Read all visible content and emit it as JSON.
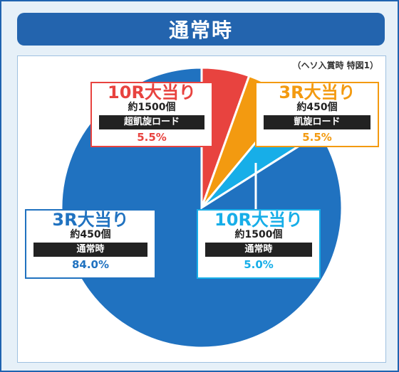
{
  "header": {
    "title": "通常時"
  },
  "note": "（ヘソ入賞時 特図1）",
  "chart_data": {
    "type": "pie",
    "title": "通常時",
    "slices": [
      {
        "title": "10R大当り",
        "sub": "約1500個",
        "tag": "超凱旋ロード",
        "value": 5.5,
        "pct_label": "5.5%",
        "color": "#e8433f"
      },
      {
        "title": "3R大当り",
        "sub": "約450個",
        "tag": "凱旋ロード",
        "value": 5.5,
        "pct_label": "5.5%",
        "color": "#f39a10"
      },
      {
        "title": "10R大当り",
        "sub": "約1500個",
        "tag": "通常時",
        "value": 5.0,
        "pct_label": "5.0%",
        "color": "#17aee8"
      },
      {
        "title": "3R大当り",
        "sub": "約450個",
        "tag": "通常時",
        "value": 84.0,
        "pct_label": "84.0%",
        "color": "#2072c0"
      }
    ]
  }
}
